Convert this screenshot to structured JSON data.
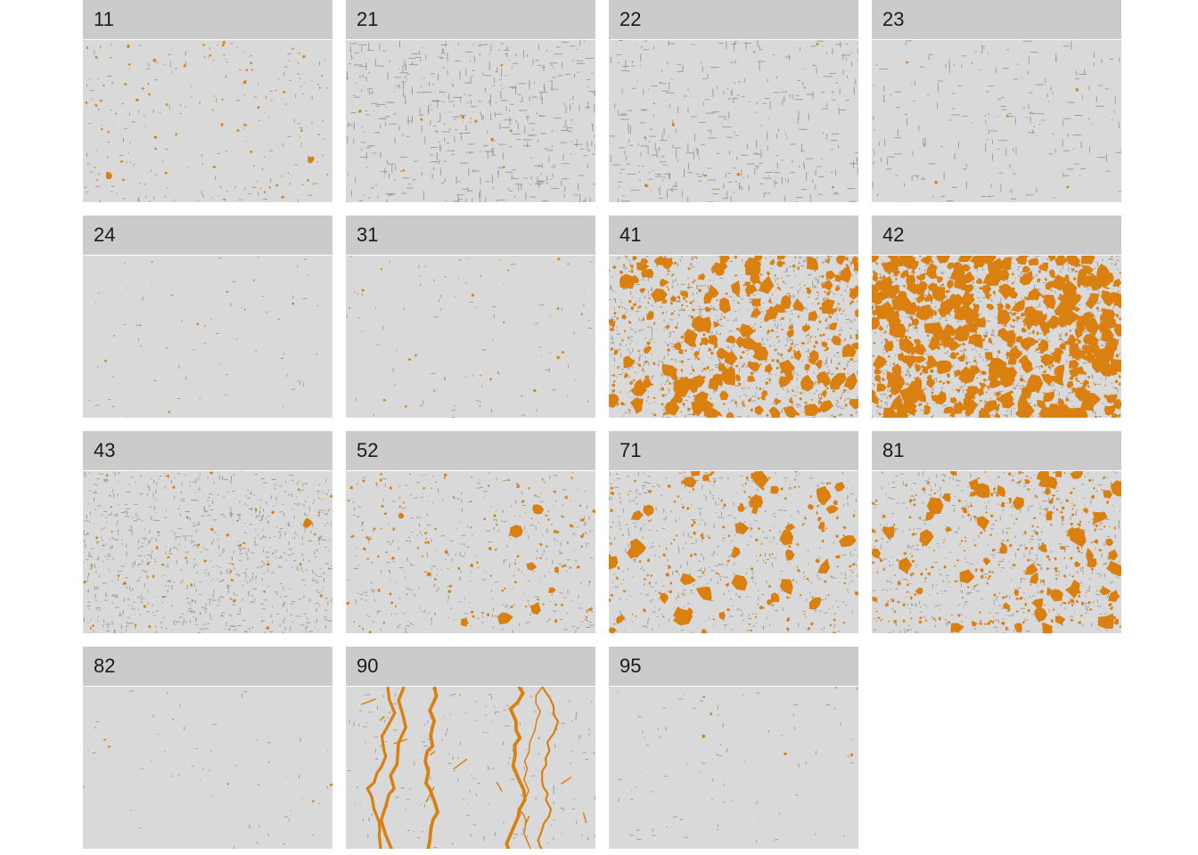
{
  "colors": {
    "background": "#d9d9d9",
    "strip": "#cbcbcb",
    "presence": "#d98011",
    "edge": "#8a8a8a"
  },
  "panels": [
    {
      "label": "11",
      "density": 0.06,
      "edge_density": 0.18,
      "pattern": "sparse"
    },
    {
      "label": "21",
      "density": 0.01,
      "edge_density": 0.55,
      "pattern": "roads"
    },
    {
      "label": "22",
      "density": 0.01,
      "edge_density": 0.4,
      "pattern": "roads"
    },
    {
      "label": "23",
      "density": 0.005,
      "edge_density": 0.22,
      "pattern": "roads"
    },
    {
      "label": "24",
      "density": 0.01,
      "edge_density": 0.06,
      "pattern": "sparse"
    },
    {
      "label": "31",
      "density": 0.02,
      "edge_density": 0.08,
      "pattern": "sparse"
    },
    {
      "label": "41",
      "density": 0.45,
      "edge_density": 0.8,
      "pattern": "patches"
    },
    {
      "label": "42",
      "density": 0.7,
      "edge_density": 0.8,
      "pattern": "patches"
    },
    {
      "label": "43",
      "density": 0.05,
      "edge_density": 0.9,
      "pattern": "speckle"
    },
    {
      "label": "52",
      "density": 0.12,
      "edge_density": 0.35,
      "pattern": "patches"
    },
    {
      "label": "71",
      "density": 0.2,
      "edge_density": 0.45,
      "pattern": "patches"
    },
    {
      "label": "81",
      "density": 0.3,
      "edge_density": 0.5,
      "pattern": "patches"
    },
    {
      "label": "82",
      "density": 0.005,
      "edge_density": 0.05,
      "pattern": "sparse"
    },
    {
      "label": "90",
      "density": 0.25,
      "edge_density": 0.2,
      "pattern": "rivers"
    },
    {
      "label": "95",
      "density": 0.003,
      "edge_density": 0.08,
      "pattern": "sparse"
    }
  ]
}
